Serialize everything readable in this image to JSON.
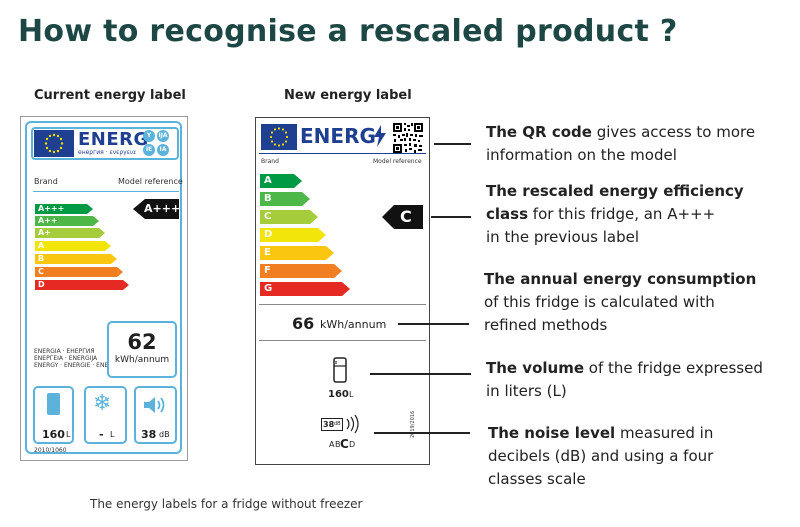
{
  "title": "How to recognise a rescaled product ?",
  "current_heading": "Current energy label",
  "new_heading": "New energy label",
  "old_label": {
    "energy_word": "ENERG",
    "circle_top": [
      "Y",
      "IJA"
    ],
    "circle_bottom": [
      "IE",
      "IA"
    ],
    "subtitle": "енергия · ενεργεια",
    "brand": "Brand",
    "model": "Model reference",
    "classes": [
      {
        "label": "A+++",
        "color": "#009a44"
      },
      {
        "label": "A++",
        "color": "#4db848"
      },
      {
        "label": "A+",
        "color": "#a4cc3b"
      },
      {
        "label": "A",
        "color": "#f1e50a"
      },
      {
        "label": "B",
        "color": "#fbc60f"
      },
      {
        "label": "C",
        "color": "#f17f22"
      },
      {
        "label": "D",
        "color": "#e52a23"
      }
    ],
    "marker": "A+++",
    "energy_text_lines": [
      "ENERGIA · ЕНЕРГИЯ",
      "ENEPГЕIA · ENERGIJA",
      "ENERGY · ENERGIE · ENERGI"
    ],
    "consumption_value": "62",
    "consumption_unit": "kWh/annum",
    "volume_value": "160",
    "volume_unit": "L",
    "freezer_value": "-",
    "freezer_unit": "L",
    "noise_value": "38",
    "noise_unit": "dB",
    "regulation": "2010/1060"
  },
  "new_label": {
    "energy_word": "ENERG",
    "brand": "Brand",
    "model": "Model reference",
    "classes": [
      {
        "label": "A",
        "color": "#009a44"
      },
      {
        "label": "B",
        "color": "#4db848"
      },
      {
        "label": "C",
        "color": "#a4cc3b"
      },
      {
        "label": "D",
        "color": "#f1e50a"
      },
      {
        "label": "E",
        "color": "#fbc60f"
      },
      {
        "label": "F",
        "color": "#f17f22"
      },
      {
        "label": "G",
        "color": "#e52a23"
      }
    ],
    "marker": "C",
    "consumption_value": "66",
    "consumption_unit": "kWh/annum",
    "volume_value": "160",
    "volume_unit": "L",
    "noise_value": "38",
    "noise_unit": "dB",
    "noise_scale_a": "A",
    "noise_scale_b": "B",
    "noise_scale_c": "C",
    "noise_scale_d": "D",
    "regulation": "2019/2016"
  },
  "annotations": {
    "qr": {
      "bold": "The QR code",
      "rest": " gives access to more",
      "line2": "information on the model"
    },
    "class": {
      "bold": "The rescaled energy efficiency",
      "bold2": "class",
      "rest2": " for this fridge, an A+++",
      "line3": "in the previous label"
    },
    "consumption": {
      "bold": "The annual energy consumption",
      "line2": "of this fridge is calculated with",
      "line3": "refined methods"
    },
    "volume": {
      "bold": "The volume",
      "rest": " of the fridge expressed",
      "line2": "in liters (L)"
    },
    "noise": {
      "bold": "The noise level",
      "rest": " measured in",
      "line2": "decibels (dB) and using a four",
      "line3": "classes scale"
    }
  },
  "caption": "The energy labels for a fridge without freezer"
}
